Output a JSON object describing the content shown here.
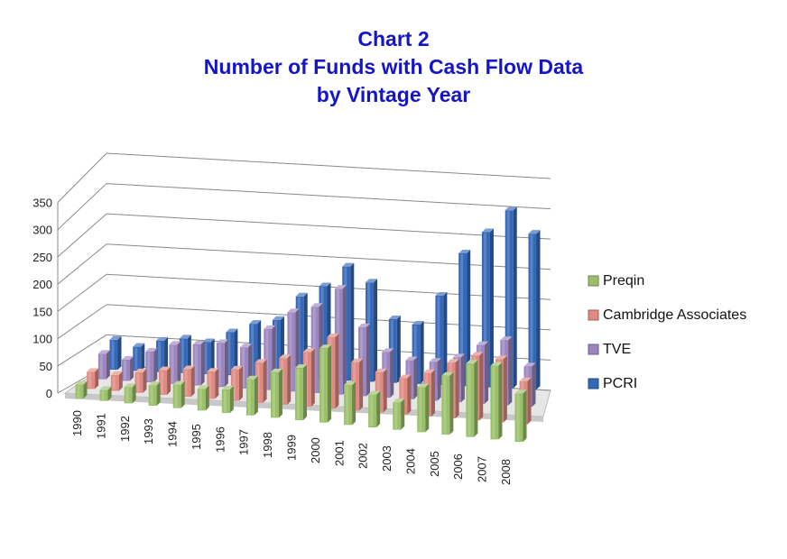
{
  "chart_data": {
    "type": "bar",
    "subtype": "3d-clustered-column",
    "title_lines": [
      "Chart 2",
      "Number of Funds with Cash Flow Data",
      "by Vintage Year"
    ],
    "categories": [
      "1990",
      "1991",
      "1992",
      "1993",
      "1994",
      "1995",
      "1996",
      "1997",
      "1998",
      "1999",
      "2000",
      "2001",
      "2002",
      "2003",
      "2004",
      "2005",
      "2006",
      "2007",
      "2008"
    ],
    "ylim": [
      0,
      350
    ],
    "yticks": [
      "0",
      "50",
      "100",
      "150",
      "200",
      "250",
      "300",
      "350"
    ],
    "series": [
      {
        "name": "Preqin",
        "color": "#9bc06a",
        "values": [
          24,
          19,
          28,
          35,
          40,
          37,
          40,
          61,
          77,
          88,
          125,
          67,
          55,
          46,
          75,
          98,
          122,
          122,
          80
        ]
      },
      {
        "name": "Cambridge Associates",
        "color": "#e08a82",
        "values": [
          30,
          28,
          36,
          43,
          48,
          47,
          54,
          69,
          80,
          94,
          123,
          83,
          69,
          62,
          74,
          95,
          110,
          107,
          73
        ]
      },
      {
        "name": "TVE",
        "color": "#9c86c0",
        "values": [
          46,
          38,
          55,
          70,
          73,
          78,
          73,
          108,
          140,
          152,
          186,
          121,
          80,
          68,
          68,
          78,
          102,
          113,
          70
        ]
      },
      {
        "name": "PCRI",
        "color": "#3568b8",
        "values": [
          55,
          44,
          57,
          63,
          58,
          78,
          95,
          104,
          148,
          168,
          205,
          178,
          114,
          106,
          159,
          236,
          275,
          315,
          275
        ]
      }
    ],
    "legend_position": "right",
    "grid": true
  }
}
